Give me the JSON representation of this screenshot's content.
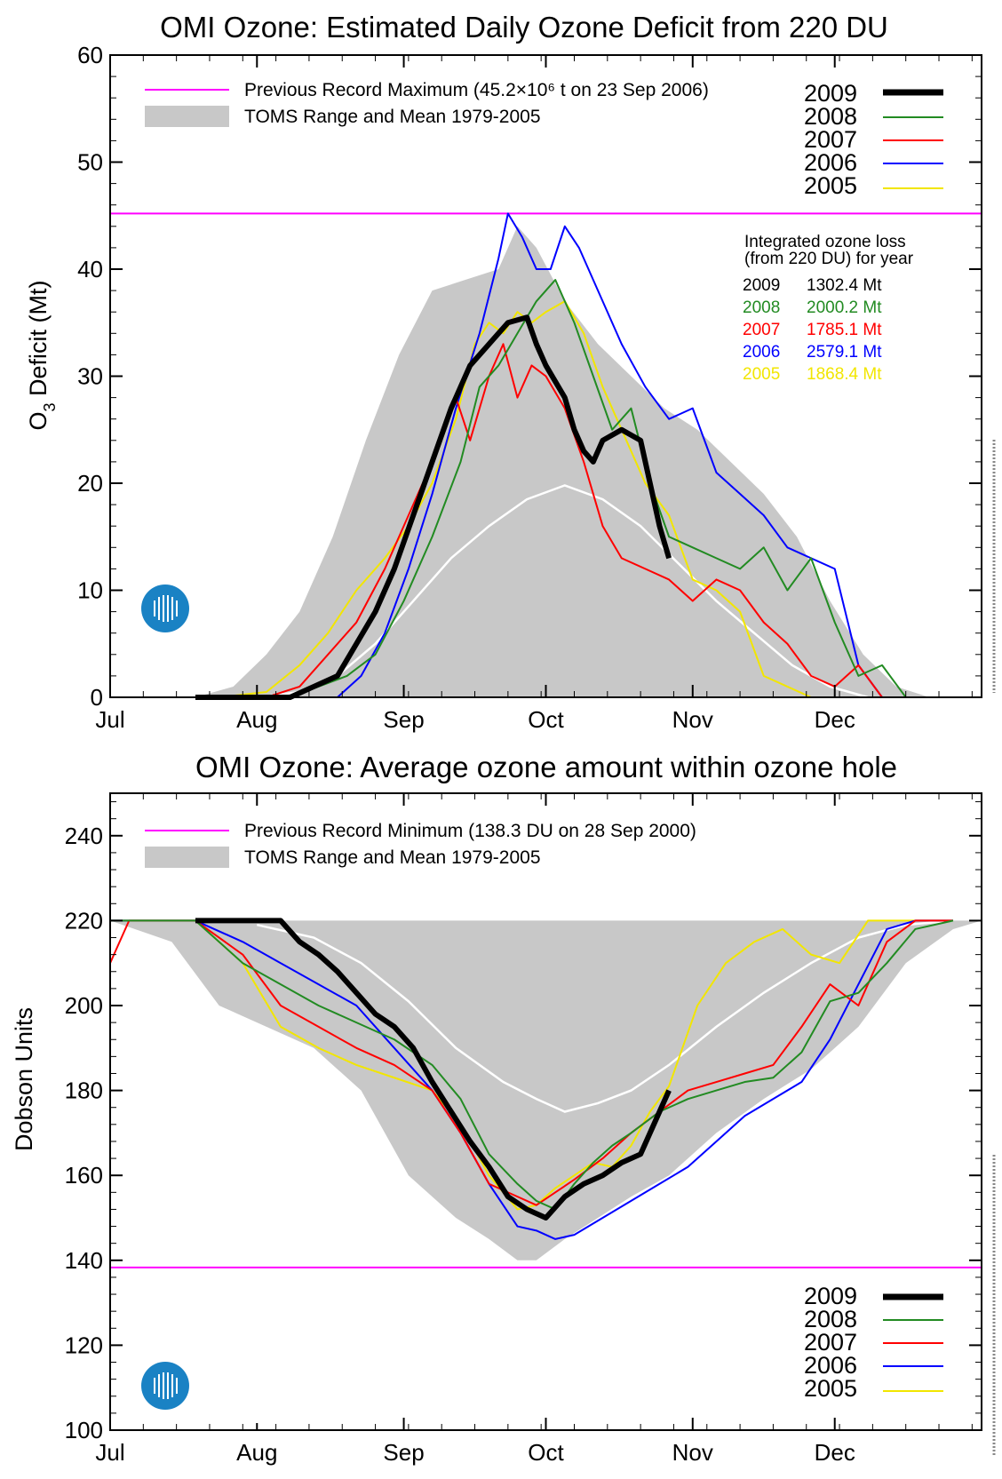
{
  "colors": {
    "record": "#ff00ff",
    "toms_range": "#c8c8c8",
    "toms_mean": "#ffffff",
    "2009": "#000000",
    "2008": "#228b22",
    "2007": "#ff0000",
    "2006": "#0000ff",
    "2005": "#f2e600",
    "logo": "#1a82c4"
  },
  "chart_data": [
    {
      "type": "line",
      "title": "OMI Ozone: Estimated Daily Ozone Deficit from 220 DU",
      "ylabel": "O3 Deficit (Mt)",
      "ylabel_main": "O",
      "ylabel_sub": "3",
      "ylabel_rest": " Deficit (Mt)",
      "xlabel": "",
      "x_unit": "day of year",
      "xlim": [
        182,
        366
      ],
      "ylim": [
        0,
        60
      ],
      "yticks": [
        0,
        10,
        20,
        30,
        40,
        50,
        60
      ],
      "x_ticks": [
        {
          "label": "Jul",
          "day": 182
        },
        {
          "label": "Aug",
          "day": 213
        },
        {
          "label": "Sep",
          "day": 244
        },
        {
          "label": "Oct",
          "day": 274
        },
        {
          "label": "Nov",
          "day": 305
        },
        {
          "label": "Dec",
          "day": 335
        }
      ],
      "record_line": {
        "label": "Previous Record Maximum (45.2×10⁶ t on 23 Sep 2006)",
        "value": 45.2
      },
      "range_label": "TOMS Range and Mean 1979-2005",
      "legend_years": [
        "2009",
        "2008",
        "2007",
        "2006",
        "2005"
      ],
      "integrated": {
        "title_line1": "Integrated ozone loss",
        "title_line2": "(from 220 DU) for year",
        "rows": [
          {
            "year": "2009",
            "value": "1302.4 Mt"
          },
          {
            "year": "2008",
            "value": "2000.2 Mt"
          },
          {
            "year": "2007",
            "value": "1785.1 Mt"
          },
          {
            "year": "2006",
            "value": "2579.1 Mt"
          },
          {
            "year": "2005",
            "value": "1868.4 Mt"
          }
        ]
      },
      "toms_range": {
        "x": [
          200,
          208,
          215,
          222,
          229,
          236,
          243,
          250,
          257,
          264,
          268,
          272,
          278,
          285,
          292,
          299,
          306,
          313,
          320,
          327,
          334,
          341,
          348,
          355,
          362
        ],
        "max": [
          0,
          1,
          4,
          8,
          15,
          24,
          32,
          38,
          39,
          40,
          44,
          42,
          37,
          33,
          30,
          27,
          25,
          22,
          19,
          15,
          9,
          4,
          1,
          0,
          0
        ],
        "min": [
          0,
          0,
          0,
          0,
          0,
          0,
          0,
          0,
          0,
          0,
          0,
          0,
          0,
          0,
          0,
          0,
          0,
          0,
          0,
          0,
          0,
          0,
          0,
          0,
          0
        ]
      },
      "toms_mean": {
        "x": [
          213,
          222,
          230,
          238,
          246,
          254,
          262,
          270,
          278,
          286,
          294,
          302,
          310,
          318,
          326,
          334,
          342
        ],
        "y": [
          0,
          0.5,
          2,
          5,
          9,
          13,
          16,
          18.5,
          19.8,
          18.5,
          16,
          12.5,
          9,
          6,
          3,
          1,
          0
        ]
      },
      "series": [
        {
          "name": "2005",
          "x": [
            205,
            215,
            222,
            228,
            234,
            240,
            245,
            250,
            255,
            259,
            262,
            265,
            268,
            271,
            274,
            278,
            282,
            286,
            290,
            295,
            300,
            305,
            310,
            315,
            320,
            325,
            330,
            335
          ],
          "y": [
            0,
            0.5,
            3,
            6,
            10,
            13,
            16,
            20,
            26,
            33,
            35,
            34,
            36,
            35,
            36,
            37,
            34,
            29,
            25,
            20,
            17,
            11,
            10,
            8,
            2,
            1,
            0,
            0
          ]
        },
        {
          "name": "2006",
          "x": [
            230,
            235,
            240,
            245,
            250,
            255,
            260,
            264,
            266,
            269,
            272,
            275,
            278,
            281,
            285,
            290,
            295,
            300,
            305,
            310,
            315,
            320,
            325,
            330,
            335,
            340,
            345
          ],
          "y": [
            0,
            2,
            6,
            12,
            19,
            27,
            34,
            41,
            45.2,
            43,
            40,
            40,
            44,
            42,
            38,
            33,
            29,
            26,
            27,
            21,
            19,
            17,
            14,
            13,
            12,
            3,
            0
          ]
        },
        {
          "name": "2007",
          "x": [
            215,
            222,
            228,
            234,
            240,
            245,
            250,
            255,
            258,
            262,
            265,
            268,
            271,
            274,
            278,
            282,
            286,
            290,
            295,
            300,
            305,
            310,
            315,
            320,
            325,
            330,
            335,
            340,
            345
          ],
          "y": [
            0,
            1,
            4,
            7,
            12,
            17,
            22,
            28,
            24,
            30,
            33,
            28,
            31,
            30,
            27,
            22,
            16,
            13,
            12,
            11,
            9,
            11,
            10,
            7,
            5,
            2,
            1,
            3,
            0
          ]
        },
        {
          "name": "2008",
          "x": [
            220,
            226,
            232,
            238,
            244,
            250,
            256,
            260,
            264,
            268,
            272,
            276,
            280,
            284,
            288,
            292,
            296,
            300,
            305,
            310,
            315,
            320,
            325,
            330,
            335,
            340,
            345,
            350
          ],
          "y": [
            0,
            1,
            2,
            4,
            9,
            15,
            22,
            29,
            31,
            34,
            37,
            39,
            35,
            30,
            25,
            27,
            20,
            15,
            14,
            13,
            12,
            14,
            10,
            13,
            7,
            2,
            3,
            0
          ]
        },
        {
          "name": "2009",
          "x": [
            200,
            210,
            220,
            225,
            230,
            234,
            238,
            242,
            246,
            250,
            254,
            258,
            262,
            266,
            270,
            272,
            274,
            278,
            280,
            282,
            284,
            286,
            290,
            294,
            296,
            298,
            300
          ],
          "y": [
            0,
            0,
            0,
            1,
            2,
            5,
            8,
            12,
            17,
            22,
            27,
            31,
            33,
            35,
            35.5,
            33,
            31,
            28,
            25,
            23,
            22,
            24,
            25,
            24,
            20,
            16,
            13
          ]
        }
      ]
    },
    {
      "type": "line",
      "title": "OMI Ozone: Average ozone amount within ozone hole",
      "ylabel": "Dobson Units",
      "xlabel": "",
      "x_unit": "day of year",
      "xlim": [
        182,
        366
      ],
      "ylim": [
        100,
        250
      ],
      "yticks": [
        100,
        120,
        140,
        160,
        180,
        200,
        220,
        240
      ],
      "x_ticks": [
        {
          "label": "Jul",
          "day": 182
        },
        {
          "label": "Aug",
          "day": 213
        },
        {
          "label": "Sep",
          "day": 244
        },
        {
          "label": "Oct",
          "day": 274
        },
        {
          "label": "Nov",
          "day": 305
        },
        {
          "label": "Dec",
          "day": 335
        }
      ],
      "record_line": {
        "label": "Previous Record Minimum (138.3 DU on 28 Sep 2000)",
        "value": 138.3
      },
      "range_label": "TOMS Range and Mean 1979-2005",
      "legend_years": [
        "2009",
        "2008",
        "2007",
        "2006",
        "2005"
      ],
      "toms_range": {
        "x": [
          182,
          195,
          205,
          215,
          225,
          235,
          245,
          255,
          262,
          268,
          272,
          278,
          285,
          292,
          300,
          310,
          320,
          330,
          340,
          350,
          360,
          366
        ],
        "min": [
          220,
          215,
          200,
          195,
          190,
          180,
          160,
          150,
          145,
          140,
          140,
          145,
          150,
          155,
          160,
          170,
          178,
          185,
          195,
          210,
          218,
          220
        ],
        "max": [
          220,
          220,
          220,
          220,
          220,
          220,
          220,
          220,
          220,
          220,
          220,
          220,
          220,
          220,
          220,
          220,
          220,
          220,
          220,
          220,
          220,
          220
        ]
      },
      "toms_mean": {
        "x": [
          213,
          225,
          235,
          245,
          255,
          265,
          272,
          278,
          285,
          292,
          300,
          310,
          320,
          330,
          340,
          350,
          360
        ],
        "y": [
          219,
          216,
          210,
          201,
          190,
          182,
          178,
          175,
          177,
          180,
          186,
          195,
          203,
          210,
          216,
          219,
          220
        ]
      },
      "series": [
        {
          "name": "2005",
          "x": [
            182,
            190,
            200,
            210,
            218,
            226,
            234,
            242,
            250,
            256,
            262,
            268,
            272,
            276,
            280,
            284,
            288,
            292,
            296,
            300,
            306,
            312,
            318,
            324,
            330,
            336,
            342,
            350,
            360
          ],
          "y": [
            220,
            220,
            220,
            210,
            195,
            190,
            186,
            183,
            180,
            172,
            160,
            152,
            153,
            157,
            160,
            163,
            162,
            167,
            175,
            181,
            200,
            210,
            215,
            218,
            212,
            210,
            220,
            220,
            220
          ]
        },
        {
          "name": "2006",
          "x": [
            182,
            190,
            200,
            210,
            218,
            226,
            234,
            242,
            250,
            256,
            262,
            268,
            272,
            276,
            280,
            286,
            292,
            298,
            304,
            310,
            316,
            322,
            328,
            334,
            340,
            346,
            352,
            360
          ],
          "y": [
            220,
            220,
            220,
            215,
            210,
            205,
            200,
            190,
            180,
            170,
            158,
            148,
            147,
            145,
            146,
            150,
            154,
            158,
            162,
            168,
            174,
            178,
            182,
            192,
            205,
            218,
            220,
            220
          ]
        },
        {
          "name": "2007",
          "x": [
            182,
            186,
            192,
            200,
            210,
            218,
            226,
            234,
            242,
            250,
            256,
            262,
            268,
            272,
            276,
            280,
            286,
            292,
            298,
            304,
            310,
            316,
            322,
            328,
            334,
            340,
            346,
            352,
            360
          ],
          "y": [
            210,
            220,
            220,
            220,
            212,
            200,
            195,
            190,
            186,
            180,
            170,
            158,
            155,
            153,
            156,
            159,
            164,
            170,
            175,
            180,
            182,
            184,
            186,
            195,
            205,
            200,
            215,
            220,
            220
          ]
        },
        {
          "name": "2008",
          "x": [
            182,
            190,
            200,
            210,
            218,
            226,
            234,
            242,
            250,
            256,
            262,
            268,
            272,
            276,
            280,
            284,
            288,
            292,
            298,
            304,
            310,
            316,
            322,
            328,
            334,
            340,
            346,
            352,
            360
          ],
          "y": [
            220,
            220,
            220,
            210,
            205,
            200,
            196,
            192,
            186,
            178,
            165,
            158,
            154,
            152,
            158,
            163,
            167,
            170,
            175,
            178,
            180,
            182,
            183,
            189,
            201,
            203,
            210,
            218,
            220
          ]
        },
        {
          "name": "2009",
          "x": [
            200,
            206,
            212,
            218,
            222,
            226,
            230,
            234,
            238,
            242,
            246,
            250,
            254,
            258,
            262,
            266,
            270,
            274,
            278,
            282,
            286,
            290,
            294,
            296,
            298,
            300
          ],
          "y": [
            220,
            220,
            220,
            220,
            215,
            212,
            208,
            203,
            198,
            195,
            190,
            182,
            175,
            168,
            162,
            155,
            152,
            150,
            155,
            158,
            160,
            163,
            165,
            170,
            175,
            180
          ]
        }
      ]
    }
  ]
}
